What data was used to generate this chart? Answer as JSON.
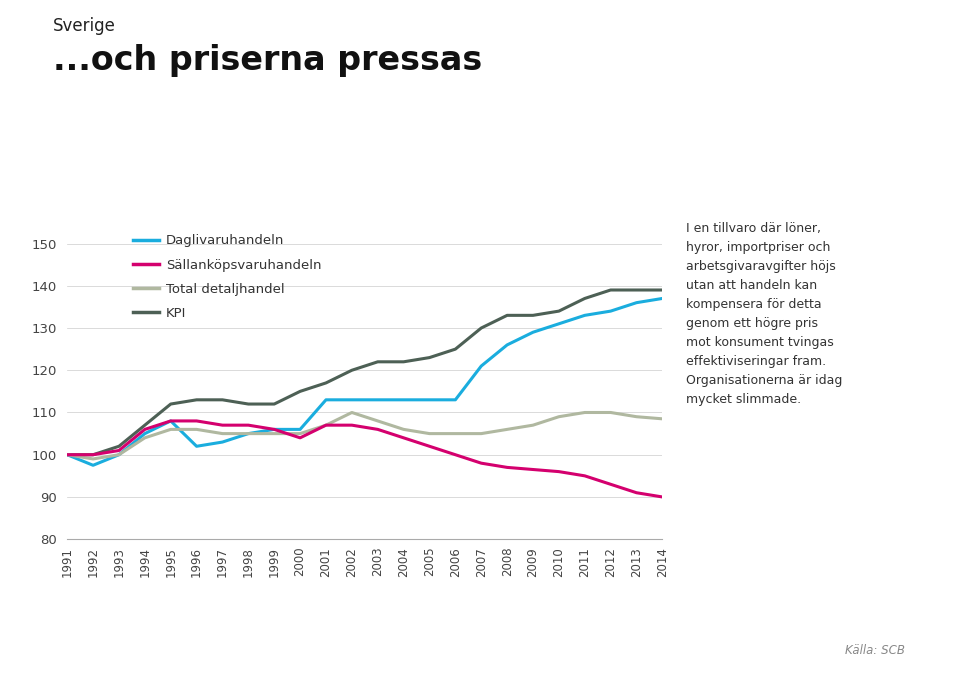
{
  "title_top": "Sverige",
  "title_main": "...och priserna pressas",
  "annotation": "I en tillvaro där löner,\nhyror, importpriser och\narbetsgivaravgifter höjs\nutan att handeln kan\nkompensera för detta\ngenom ett högre pris\nmot konsument tvingas\neffektiviseringar fram.\nOrganisationerna är idag\nmycket slimmade.",
  "source": "Källa: SCB",
  "years": [
    1991,
    1992,
    1993,
    1994,
    1995,
    1996,
    1997,
    1998,
    1999,
    2000,
    2001,
    2002,
    2003,
    2004,
    2005,
    2006,
    2007,
    2008,
    2009,
    2010,
    2011,
    2012,
    2013,
    2014
  ],
  "daglivaru": [
    100,
    97.5,
    100,
    105,
    108,
    102,
    103,
    105,
    106,
    106,
    113,
    113,
    113,
    113,
    113,
    113,
    121,
    126,
    129,
    131,
    133,
    134,
    136,
    137
  ],
  "sallankops": [
    100,
    100,
    101,
    106,
    108,
    108,
    107,
    107,
    106,
    104,
    107,
    107,
    106,
    104,
    102,
    100,
    98,
    97,
    96.5,
    96,
    95,
    93,
    91,
    90
  ],
  "total_detaljhandel": [
    100,
    99,
    100,
    104,
    106,
    106,
    105,
    105,
    105,
    105,
    107,
    110,
    108,
    106,
    105,
    105,
    105,
    106,
    107,
    109,
    110,
    110,
    109,
    108.5
  ],
  "kpi": [
    100,
    100,
    102,
    107,
    112,
    113,
    113,
    112,
    112,
    115,
    117,
    120,
    122,
    122,
    123,
    125,
    130,
    133,
    133,
    134,
    137,
    139,
    139,
    139
  ],
  "colors": {
    "daglivaru": "#1aadde",
    "sallankops": "#d4006e",
    "total_detaljhandel": "#b0b8a0",
    "kpi": "#4d6055"
  },
  "ylim": [
    80,
    155
  ],
  "yticks": [
    80,
    90,
    100,
    110,
    120,
    130,
    140,
    150
  ],
  "background_color": "#ffffff",
  "legend_labels": [
    "Daglivaruhandeln",
    "Sällanköpsvaruhandeln",
    "Total detaljhandel",
    "KPI"
  ]
}
